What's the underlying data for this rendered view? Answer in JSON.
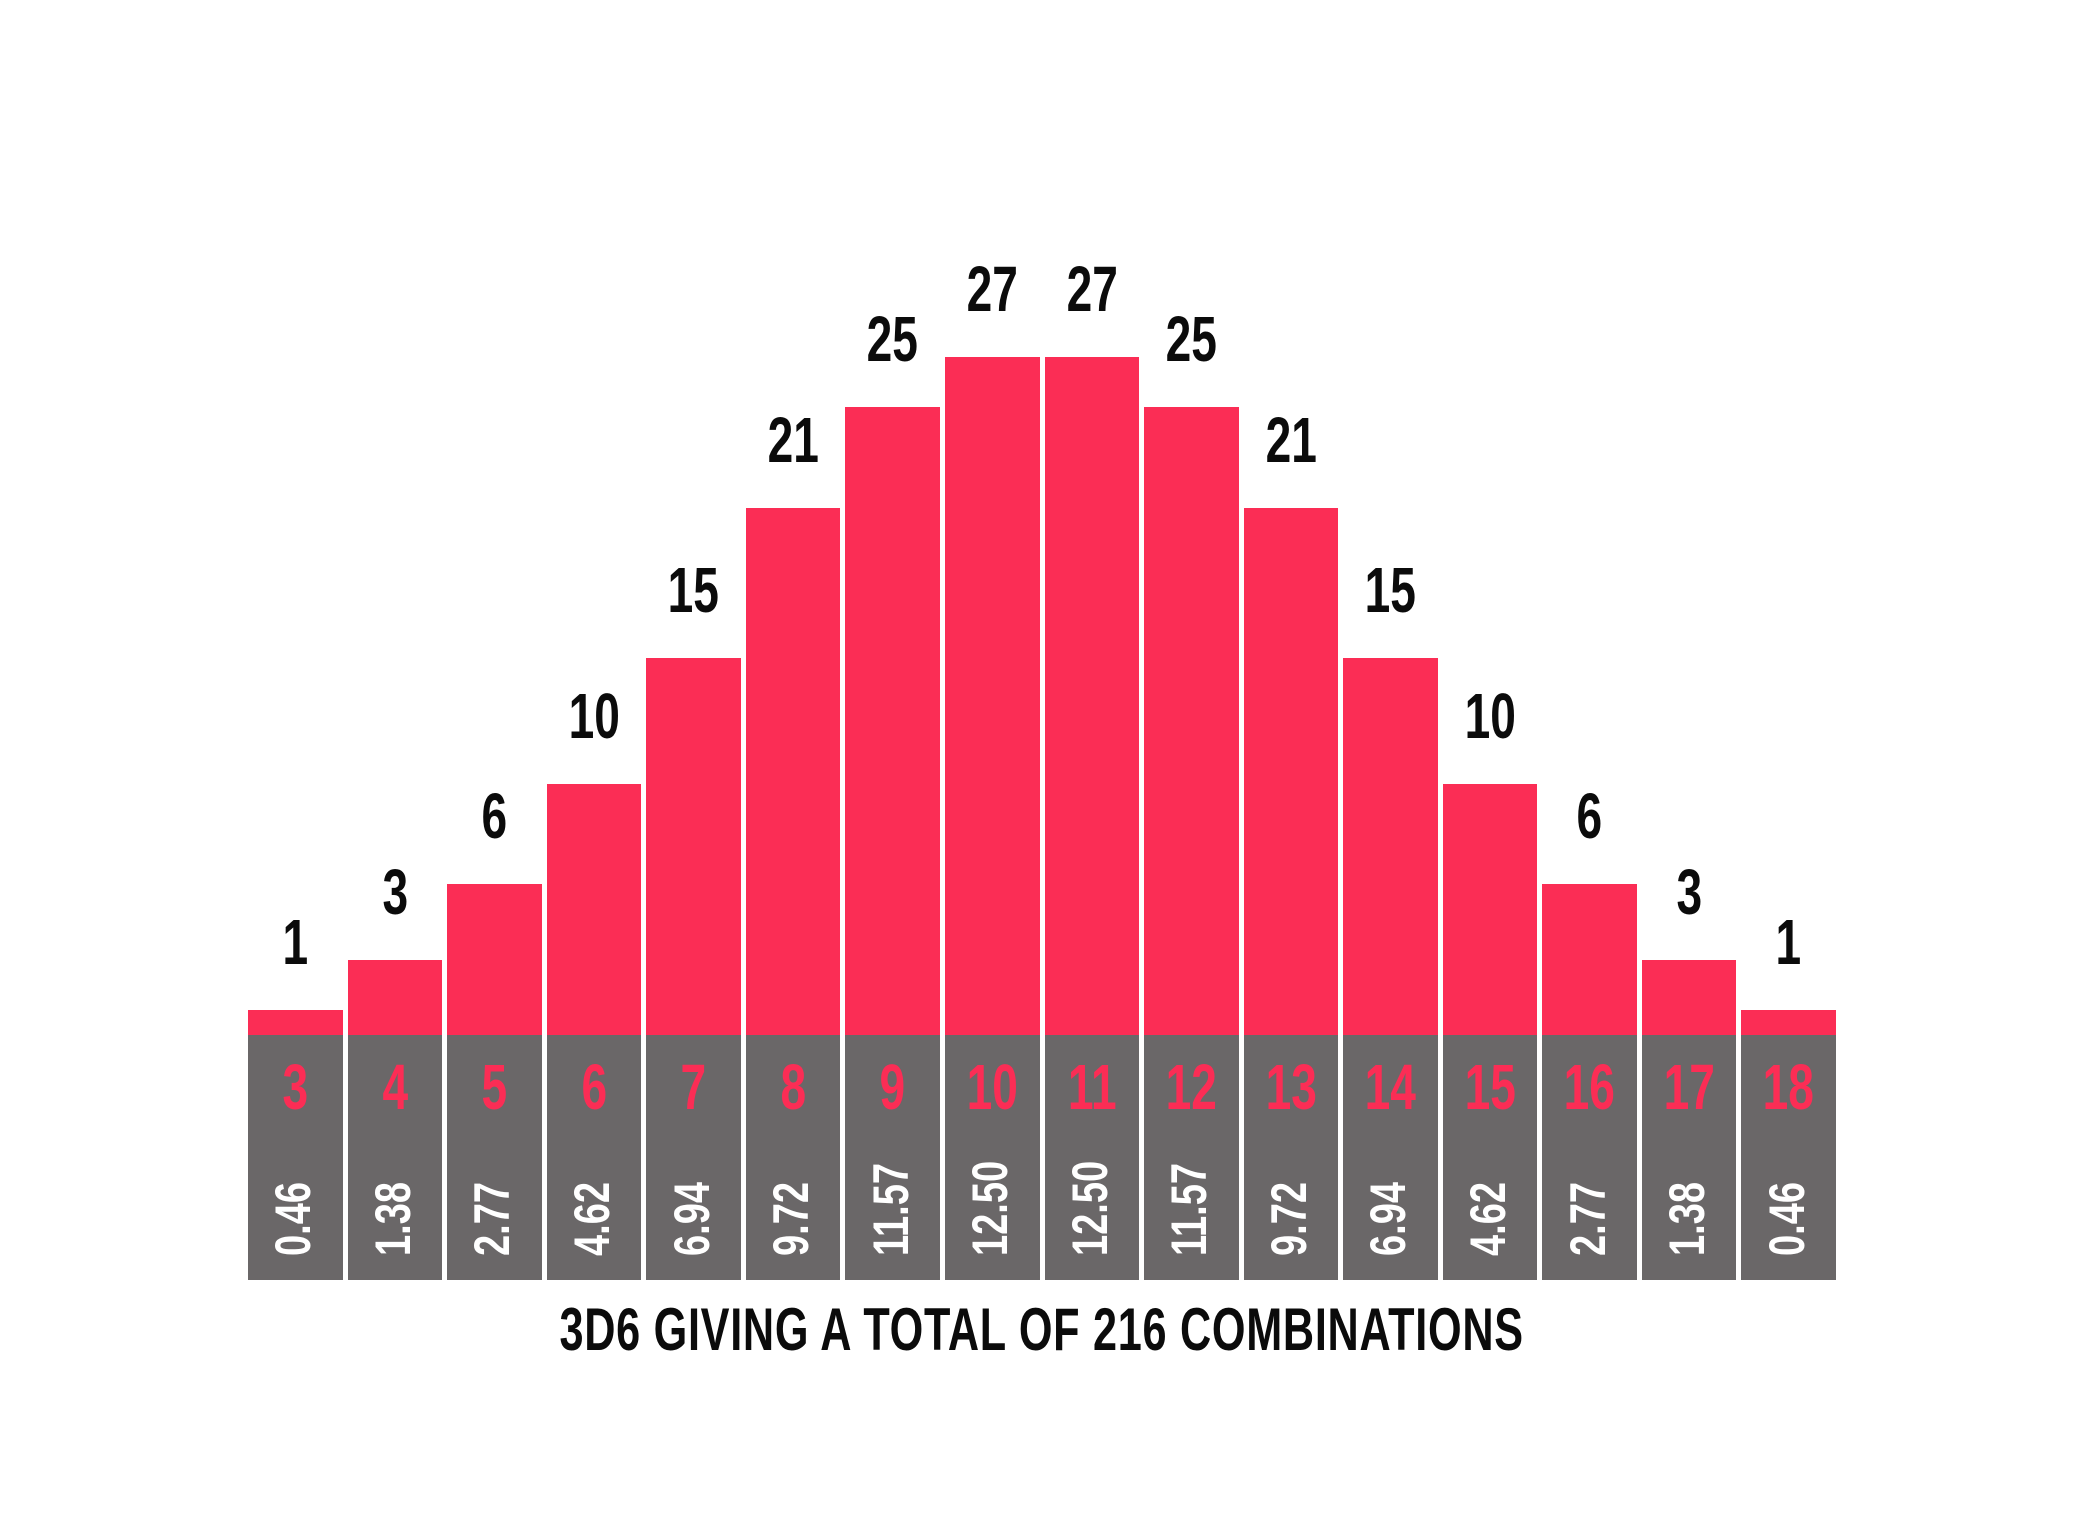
{
  "chart_data": {
    "type": "bar",
    "title": "3D6 GIVING A TOTAL OF 216 COMBINATIONS",
    "xlabel": "",
    "ylabel": "",
    "categories": [
      3,
      4,
      5,
      6,
      7,
      8,
      9,
      10,
      11,
      12,
      13,
      14,
      15,
      16,
      17,
      18
    ],
    "values": [
      1,
      3,
      6,
      10,
      15,
      21,
      25,
      27,
      27,
      25,
      21,
      15,
      10,
      6,
      3,
      1
    ],
    "percent_labels": [
      "0.46",
      "1.38",
      "2.77",
      "4.62",
      "6.94",
      "9.72",
      "11.57",
      "12.50",
      "12.50",
      "11.57",
      "9.72",
      "6.94",
      "4.62",
      "2.77",
      "1.38",
      "0.46"
    ],
    "ylim": [
      0,
      27
    ],
    "grid": false,
    "legend": false,
    "bars": [
      {
        "sum": "3",
        "count": 1,
        "pct": "0.46"
      },
      {
        "sum": "4",
        "count": 3,
        "pct": "1.38"
      },
      {
        "sum": "5",
        "count": 6,
        "pct": "2.77"
      },
      {
        "sum": "6",
        "count": 10,
        "pct": "4.62"
      },
      {
        "sum": "7",
        "count": 15,
        "pct": "6.94"
      },
      {
        "sum": "8",
        "count": 21,
        "pct": "9.72"
      },
      {
        "sum": "9",
        "count": 25,
        "pct": "11.57"
      },
      {
        "sum": "10",
        "count": 27,
        "pct": "12.50"
      },
      {
        "sum": "11",
        "count": 27,
        "pct": "12.50"
      },
      {
        "sum": "12",
        "count": 25,
        "pct": "11.57"
      },
      {
        "sum": "13",
        "count": 21,
        "pct": "9.72"
      },
      {
        "sum": "14",
        "count": 15,
        "pct": "6.94"
      },
      {
        "sum": "15",
        "count": 10,
        "pct": "4.62"
      },
      {
        "sum": "16",
        "count": 6,
        "pct": "2.77"
      },
      {
        "sum": "17",
        "count": 3,
        "pct": "1.38"
      },
      {
        "sum": "18",
        "count": 1,
        "pct": "0.46"
      }
    ],
    "colors": {
      "bar": "#FB2D55",
      "band": "#6A6768",
      "label": "#0B0B0B",
      "pct": "#FFFFFF",
      "background": "#FFFFFF"
    }
  }
}
